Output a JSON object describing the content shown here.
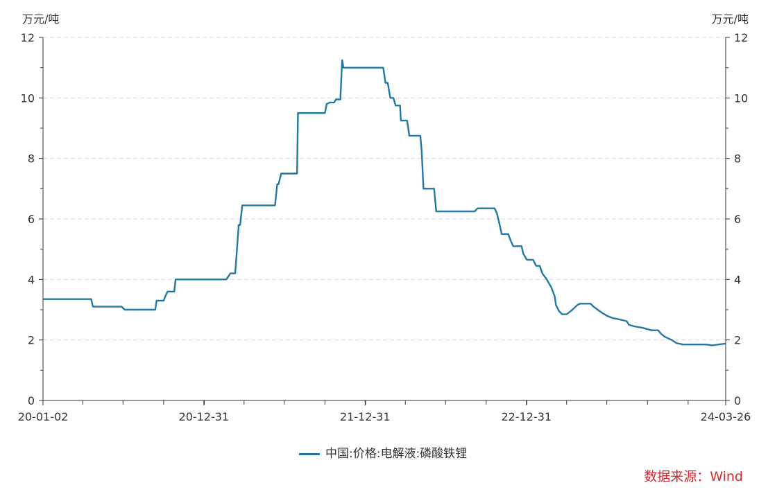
{
  "chart_data": {
    "type": "line",
    "yunit": "万元/吨",
    "y2unit": "万元/吨",
    "ylim": [
      0,
      12
    ],
    "yticks": [
      0,
      2,
      4,
      6,
      8,
      10,
      12
    ],
    "grid": true,
    "legend_position": "bottom",
    "xlim": [
      "2020-01-02",
      "2024-03-26"
    ],
    "xtick_labels": [
      {
        "label": "20-01-02",
        "date": "2020-01-02"
      },
      {
        "label": "20-12-31",
        "date": "2020-12-31"
      },
      {
        "label": "21-12-31",
        "date": "2021-12-31"
      },
      {
        "label": "22-12-31",
        "date": "2022-12-31"
      },
      {
        "label": "24-03-26",
        "date": "2024-03-26"
      }
    ],
    "series": [
      {
        "name": "中国:价格:电解液:磷酸铁锂",
        "color": "#2278a3",
        "points": [
          [
            "2020-01-02",
            3.35
          ],
          [
            "2020-04-20",
            3.35
          ],
          [
            "2020-04-24",
            3.1
          ],
          [
            "2020-06-28",
            3.1
          ],
          [
            "2020-07-05",
            3.0
          ],
          [
            "2020-09-12",
            3.0
          ],
          [
            "2020-09-15",
            3.3
          ],
          [
            "2020-10-01",
            3.3
          ],
          [
            "2020-10-05",
            3.45
          ],
          [
            "2020-10-10",
            3.6
          ],
          [
            "2020-10-25",
            3.6
          ],
          [
            "2020-10-28",
            4.0
          ],
          [
            "2021-01-05",
            4.0
          ],
          [
            "2021-02-20",
            4.0
          ],
          [
            "2021-03-01",
            4.2
          ],
          [
            "2021-03-12",
            4.2
          ],
          [
            "2021-03-20",
            5.8
          ],
          [
            "2021-03-23",
            5.8
          ],
          [
            "2021-03-28",
            6.45
          ],
          [
            "2021-06-10",
            6.45
          ],
          [
            "2021-06-15",
            7.15
          ],
          [
            "2021-06-18",
            7.15
          ],
          [
            "2021-06-24",
            7.5
          ],
          [
            "2021-07-30",
            7.5
          ],
          [
            "2021-08-01",
            9.5
          ],
          [
            "2021-10-01",
            9.5
          ],
          [
            "2021-10-05",
            9.8
          ],
          [
            "2021-10-12",
            9.85
          ],
          [
            "2021-10-22",
            9.85
          ],
          [
            "2021-10-26",
            9.95
          ],
          [
            "2021-11-05",
            9.95
          ],
          [
            "2021-11-09",
            11.25
          ],
          [
            "2021-11-12",
            11.0
          ],
          [
            "2021-12-31",
            11.0
          ],
          [
            "2022-01-05",
            11.0
          ],
          [
            "2022-02-10",
            11.0
          ],
          [
            "2022-02-15",
            10.5
          ],
          [
            "2022-02-20",
            10.5
          ],
          [
            "2022-02-26",
            10.0
          ],
          [
            "2022-03-05",
            10.0
          ],
          [
            "2022-03-10",
            9.75
          ],
          [
            "2022-03-20",
            9.75
          ],
          [
            "2022-03-22",
            9.25
          ],
          [
            "2022-04-05",
            9.25
          ],
          [
            "2022-04-10",
            8.75
          ],
          [
            "2022-05-05",
            8.75
          ],
          [
            "2022-05-08",
            8.25
          ],
          [
            "2022-05-12",
            7.0
          ],
          [
            "2022-06-05",
            7.0
          ],
          [
            "2022-06-10",
            6.25
          ],
          [
            "2022-09-05",
            6.25
          ],
          [
            "2022-09-08",
            6.3
          ],
          [
            "2022-09-12",
            6.35
          ],
          [
            "2022-10-20",
            6.35
          ],
          [
            "2022-10-25",
            6.2
          ],
          [
            "2022-10-30",
            5.9
          ],
          [
            "2022-11-05",
            5.5
          ],
          [
            "2022-11-20",
            5.5
          ],
          [
            "2022-11-25",
            5.3
          ],
          [
            "2022-12-01",
            5.1
          ],
          [
            "2022-12-20",
            5.1
          ],
          [
            "2022-12-24",
            4.85
          ],
          [
            "2023-01-01",
            4.65
          ],
          [
            "2023-01-15",
            4.65
          ],
          [
            "2023-01-22",
            4.45
          ],
          [
            "2023-01-30",
            4.45
          ],
          [
            "2023-02-05",
            4.2
          ],
          [
            "2023-02-15",
            4.0
          ],
          [
            "2023-02-25",
            3.75
          ],
          [
            "2023-03-05",
            3.45
          ],
          [
            "2023-03-08",
            3.15
          ],
          [
            "2023-03-15",
            2.95
          ],
          [
            "2023-03-22",
            2.85
          ],
          [
            "2023-04-01",
            2.85
          ],
          [
            "2023-04-10",
            2.95
          ],
          [
            "2023-04-18",
            3.05
          ],
          [
            "2023-04-25",
            3.15
          ],
          [
            "2023-05-01",
            3.2
          ],
          [
            "2023-05-25",
            3.2
          ],
          [
            "2023-06-01",
            3.1
          ],
          [
            "2023-06-10",
            3.0
          ],
          [
            "2023-06-20",
            2.9
          ],
          [
            "2023-07-01",
            2.8
          ],
          [
            "2023-07-15",
            2.72
          ],
          [
            "2023-07-30",
            2.68
          ],
          [
            "2023-08-15",
            2.62
          ],
          [
            "2023-08-20",
            2.5
          ],
          [
            "2023-09-01",
            2.45
          ],
          [
            "2023-09-20",
            2.4
          ],
          [
            "2023-10-10",
            2.32
          ],
          [
            "2023-10-25",
            2.32
          ],
          [
            "2023-11-01",
            2.2
          ],
          [
            "2023-11-10",
            2.1
          ],
          [
            "2023-11-25",
            2.0
          ],
          [
            "2023-12-05",
            1.9
          ],
          [
            "2023-12-20",
            1.85
          ],
          [
            "2024-02-10",
            1.85
          ],
          [
            "2024-02-25",
            1.82
          ],
          [
            "2024-03-10",
            1.85
          ],
          [
            "2024-03-26",
            1.88
          ]
        ]
      }
    ]
  },
  "source": "数据来源：Wind"
}
